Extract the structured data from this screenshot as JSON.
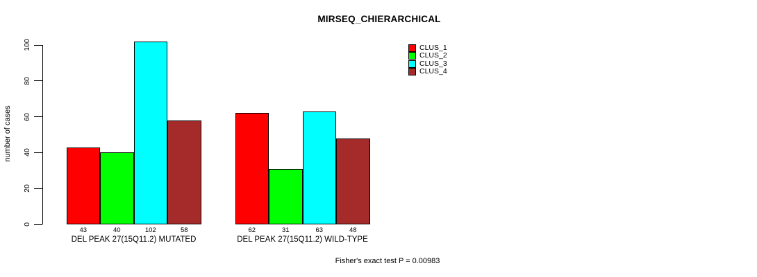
{
  "chart_data": {
    "type": "bar",
    "title": "MIRSEQ_CHIERARCHICAL",
    "ylabel": "number of cases",
    "xlabel": "",
    "ylim": [
      0,
      100
    ],
    "yticks": [
      0,
      20,
      40,
      60,
      80,
      100
    ],
    "grid": false,
    "legend_position": "top-right",
    "bar_value_labels_shown": true,
    "categories": [
      "DEL PEAK 27(15Q11.2) MUTATED",
      "DEL PEAK 27(15Q11.2) WILD-TYPE"
    ],
    "series": [
      {
        "name": "CLUS_1",
        "color": "#FF0000",
        "values": [
          43,
          62
        ]
      },
      {
        "name": "CLUS_2",
        "color": "#00FF00",
        "values": [
          40,
          31
        ]
      },
      {
        "name": "CLUS_3",
        "color": "#00FFFF",
        "values": [
          102,
          63
        ]
      },
      {
        "name": "CLUS_4",
        "color": "#A52A2A",
        "values": [
          58,
          48
        ]
      }
    ],
    "annotation": "Fisher's exact test P = 0.00983"
  },
  "colors": {
    "background": "#FFFFFF",
    "axis": "#000000",
    "bar_border": "#000000",
    "text": "#000000"
  }
}
